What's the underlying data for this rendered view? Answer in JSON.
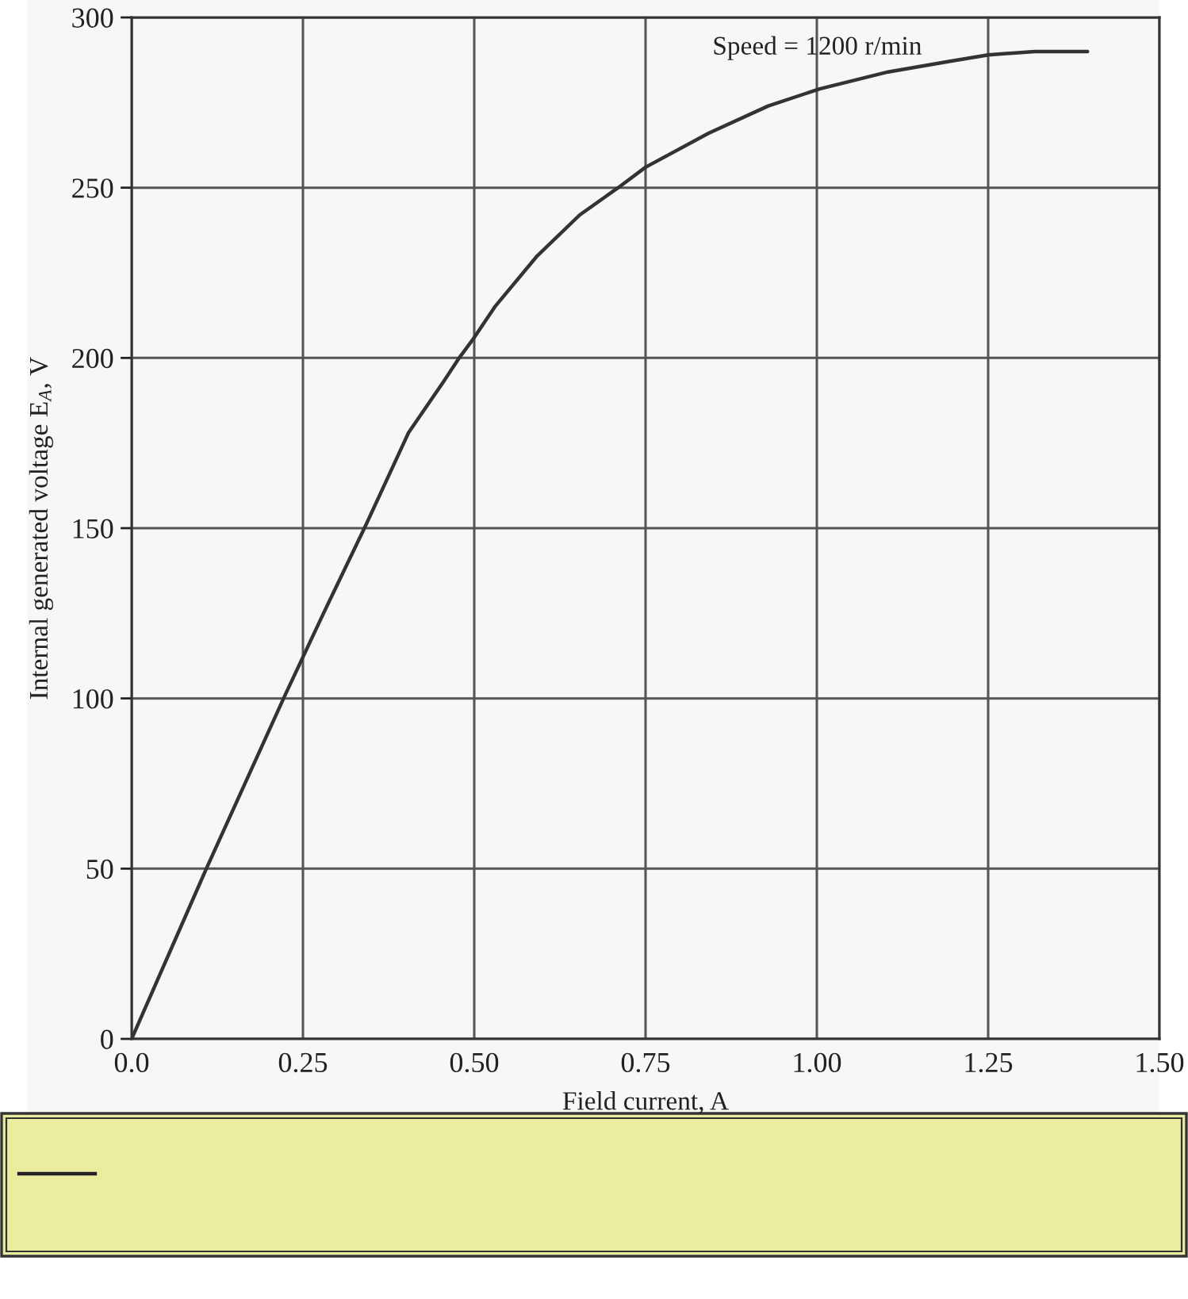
{
  "chart_data": {
    "type": "line",
    "xlabel": "Field current, A",
    "ylabel": "Internal generated voltage E$_{A}$, V",
    "annotations": [
      "Speed = 1200 r/min"
    ],
    "x": [
      0,
      0.109,
      0.224,
      0.28,
      0.342,
      0.404,
      0.455,
      0.478,
      0.5,
      0.53,
      0.592,
      0.654,
      0.71,
      0.75,
      0.842,
      0.929,
      1.004,
      1.104,
      1.191,
      1.25,
      1.318,
      1.395
    ],
    "series": [
      {
        "color": "#333333",
        "values": [
          0,
          50,
          101,
          125,
          151,
          178,
          193,
          200,
          206,
          215,
          230,
          242,
          250,
          256,
          266,
          274,
          279,
          284,
          287,
          289,
          290,
          290
        ]
      }
    ],
    "xlim": [
      0,
      1.5
    ],
    "xticks": [
      {
        "value": 0,
        "label": "0.0"
      },
      0.25,
      {
        "value": 0.5,
        "label": "0.50"
      },
      0.75,
      {
        "value": 1.0,
        "label": "1.00"
      },
      1.25,
      {
        "value": 1.5,
        "label": "1.50"
      }
    ],
    "ylim": [
      0,
      300
    ],
    "yticks": [
      0,
      50,
      100,
      150,
      200,
      250,
      300
    ],
    "grid": true,
    "marker": "none",
    "line_style": "solid"
  }
}
